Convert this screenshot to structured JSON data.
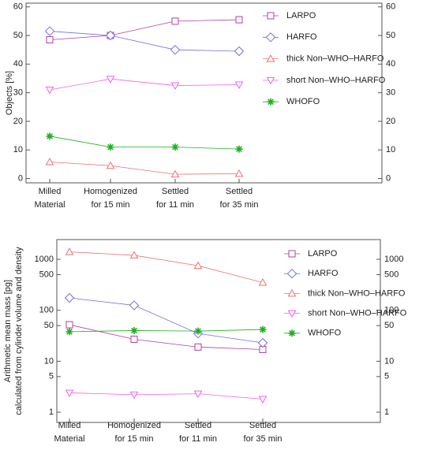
{
  "chart_data": [
    {
      "type": "line",
      "ylabel": [
        "Objects [%]"
      ],
      "categories": [
        "Milled\nMaterial",
        "Homogenized\nfor 15 min",
        "Settled\nfor 11 min",
        "Settled\nfor 35 min"
      ],
      "series": [
        {
          "name": "LARPO",
          "color": "#b040a0",
          "marker": "square",
          "values": [
            48.5,
            50,
            55,
            55.5
          ]
        },
        {
          "name": "HARFO",
          "color": "#7070e0",
          "marker": "diamond",
          "values": [
            51.5,
            50,
            45,
            44.5
          ]
        },
        {
          "name": "thick Non–WHO–HARFO",
          "color": "#f07070",
          "marker": "triangle-up",
          "values": [
            5.8,
            4.5,
            1.5,
            1.7
          ]
        },
        {
          "name": "short Non–WHO–HARFO",
          "color": "#f060f0",
          "marker": "triangle-down",
          "values": [
            31,
            34.8,
            32.5,
            32.8
          ]
        },
        {
          "name": "WHOFO",
          "color": "#20b020",
          "marker": "asterisk",
          "values": [
            14.8,
            11,
            11,
            10.3
          ]
        }
      ],
      "yscale": "linear",
      "ylim": [
        -1.5,
        61.3
      ],
      "yticks": [
        0,
        10,
        20,
        30,
        40,
        50,
        60
      ],
      "legend": "upper right"
    },
    {
      "type": "line",
      "ylabel": [
        "Arithmetic mean mass [pg]",
        "calculated from cylinder volume and density"
      ],
      "categories": [
        "Milled\nMaterial",
        "Homogenized\nfor 15 min",
        "Settled\nfor 11 min",
        "Settled\nfor 35 min"
      ],
      "series": [
        {
          "name": "LARPO",
          "color": "#b040a0",
          "marker": "square",
          "values": [
            52,
            27,
            19,
            17
          ]
        },
        {
          "name": "HARFO",
          "color": "#7070e0",
          "marker": "diamond",
          "values": [
            175,
            125,
            35,
            23
          ]
        },
        {
          "name": "thick Non–WHO–HARFO",
          "color": "#f07070",
          "marker": "triangle-up",
          "values": [
            1400,
            1200,
            750,
            350
          ]
        },
        {
          "name": "short Non–WHO–HARFO",
          "color": "#f060f0",
          "marker": "triangle-down",
          "values": [
            2.4,
            2.2,
            2.3,
            1.8
          ]
        },
        {
          "name": "WHOFO",
          "color": "#20b020",
          "marker": "asterisk",
          "values": [
            38,
            40,
            39,
            42
          ]
        }
      ],
      "yscale": "log",
      "ylim": [
        0.63,
        2440
      ],
      "yticks": [
        1,
        5,
        10,
        50,
        100,
        500,
        1000
      ],
      "legend": "upper right"
    }
  ]
}
